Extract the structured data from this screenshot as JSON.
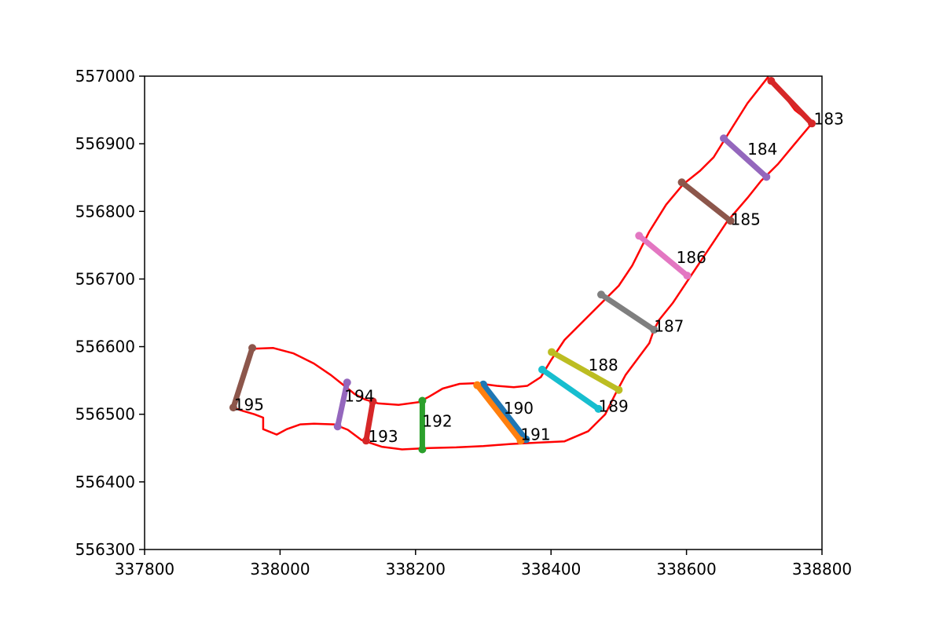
{
  "chart_data": {
    "type": "line",
    "title": "",
    "xlabel": "",
    "ylabel": "",
    "xlim": [
      337800,
      338800
    ],
    "ylim": [
      556300,
      557000
    ],
    "xticks": [
      337800,
      338000,
      338200,
      338400,
      338600,
      338800
    ],
    "yticks": [
      556300,
      556400,
      556500,
      556600,
      556700,
      556800,
      556900,
      557000
    ],
    "grid": false,
    "legend": "none",
    "boundary": {
      "color": "#ff0000",
      "points": [
        [
          337960,
          556597
        ],
        [
          337990,
          556598
        ],
        [
          338020,
          556590
        ],
        [
          338050,
          556575
        ],
        [
          338075,
          556558
        ],
        [
          338095,
          556542
        ],
        [
          338110,
          556530
        ],
        [
          338125,
          556522
        ],
        [
          338145,
          556516
        ],
        [
          338175,
          556514
        ],
        [
          338205,
          556518
        ],
        [
          338220,
          556526
        ],
        [
          338240,
          556538
        ],
        [
          338265,
          556545
        ],
        [
          338290,
          556546
        ],
        [
          338320,
          556542
        ],
        [
          338345,
          556540
        ],
        [
          338365,
          556542
        ],
        [
          338385,
          556555
        ],
        [
          338400,
          556580
        ],
        [
          338420,
          556610
        ],
        [
          338445,
          556635
        ],
        [
          338470,
          556660
        ],
        [
          338500,
          556690
        ],
        [
          338520,
          556720
        ],
        [
          338545,
          556770
        ],
        [
          338570,
          556810
        ],
        [
          338595,
          556840
        ],
        [
          338620,
          556860
        ],
        [
          338640,
          556880
        ],
        [
          338665,
          556920
        ],
        [
          338690,
          556960
        ],
        [
          338720,
          556998
        ],
        [
          338730,
          556990
        ],
        [
          338760,
          556950
        ],
        [
          338785,
          556930
        ],
        [
          338760,
          556900
        ],
        [
          338735,
          556870
        ],
        [
          338710,
          556845
        ],
        [
          338690,
          556820
        ],
        [
          338660,
          556785
        ],
        [
          338640,
          556755
        ],
        [
          338620,
          556725
        ],
        [
          338600,
          556695
        ],
        [
          338580,
          556665
        ],
        [
          338560,
          556640
        ],
        [
          338552,
          556625
        ],
        [
          338545,
          556605
        ],
        [
          338530,
          556585
        ],
        [
          338510,
          556558
        ],
        [
          338495,
          556530
        ],
        [
          338480,
          556500
        ],
        [
          338455,
          556475
        ],
        [
          338420,
          556460
        ],
        [
          338380,
          556458
        ],
        [
          338340,
          556456
        ],
        [
          338300,
          556453
        ],
        [
          338260,
          556451
        ],
        [
          338220,
          556450
        ],
        [
          338180,
          556448
        ],
        [
          338150,
          556452
        ],
        [
          338120,
          556462
        ],
        [
          338100,
          556477
        ],
        [
          338080,
          556485
        ],
        [
          338050,
          556486
        ],
        [
          338030,
          556485
        ],
        [
          338010,
          556478
        ],
        [
          337995,
          556470
        ],
        [
          337975,
          556478
        ],
        [
          337975,
          556495
        ],
        [
          337962,
          556500
        ],
        [
          337945,
          556505
        ],
        [
          337930,
          556510
        ],
        [
          337960,
          556597
        ]
      ]
    },
    "segments": [
      {
        "label": "183",
        "color": "#d62728",
        "points": [
          [
            338725,
            556993
          ],
          [
            338785,
            556930
          ]
        ],
        "label_at": [
          338788,
          556937
        ]
      },
      {
        "label": "184",
        "color": "#9467bd",
        "points": [
          [
            338655,
            556908
          ],
          [
            338718,
            556851
          ]
        ],
        "label_at": [
          338690,
          556892
        ]
      },
      {
        "label": "185",
        "color": "#8c564b",
        "points": [
          [
            338593,
            556843
          ],
          [
            338665,
            556786
          ]
        ],
        "label_at": [
          338665,
          556788
        ]
      },
      {
        "label": "186",
        "color": "#e377c2",
        "points": [
          [
            338530,
            556764
          ],
          [
            338601,
            556705
          ]
        ],
        "label_at": [
          338585,
          556732
        ]
      },
      {
        "label": "187",
        "color": "#7f7f7f",
        "points": [
          [
            338474,
            556677
          ],
          [
            338552,
            556625
          ]
        ],
        "label_at": [
          338552,
          556630
        ]
      },
      {
        "label": "188",
        "color": "#bcbd22",
        "points": [
          [
            338401,
            556592
          ],
          [
            338500,
            556536
          ]
        ],
        "label_at": [
          338455,
          556573
        ]
      },
      {
        "label": "189",
        "color": "#17becf",
        "points": [
          [
            338387,
            556566
          ],
          [
            338470,
            556508
          ]
        ],
        "label_at": [
          338470,
          556512
        ]
      },
      {
        "label": "190",
        "color": "#1f77b4",
        "points": [
          [
            338300,
            556544
          ],
          [
            338363,
            556463
          ]
        ],
        "label_at": [
          338330,
          556509
        ]
      },
      {
        "label": "191",
        "color": "#ff7f0e",
        "points": [
          [
            338291,
            556543
          ],
          [
            338355,
            556461
          ]
        ],
        "label_at": [
          338355,
          556470
        ]
      },
      {
        "label": "192",
        "color": "#2ca02c",
        "points": [
          [
            338210,
            556520
          ],
          [
            338210,
            556448
          ]
        ],
        "label_at": [
          338210,
          556490
        ]
      },
      {
        "label": "193",
        "color": "#d62728",
        "points": [
          [
            338137,
            556519
          ],
          [
            338127,
            556461
          ]
        ],
        "label_at": [
          338130,
          556467
        ]
      },
      {
        "label": "194",
        "color": "#9467bd",
        "points": [
          [
            338099,
            556547
          ],
          [
            338085,
            556482
          ]
        ],
        "label_at": [
          338095,
          556527
        ]
      },
      {
        "label": "195",
        "color": "#8c564b",
        "points": [
          [
            337959,
            556598
          ],
          [
            337931,
            556510
          ]
        ],
        "label_at": [
          337932,
          556514
        ]
      }
    ]
  }
}
